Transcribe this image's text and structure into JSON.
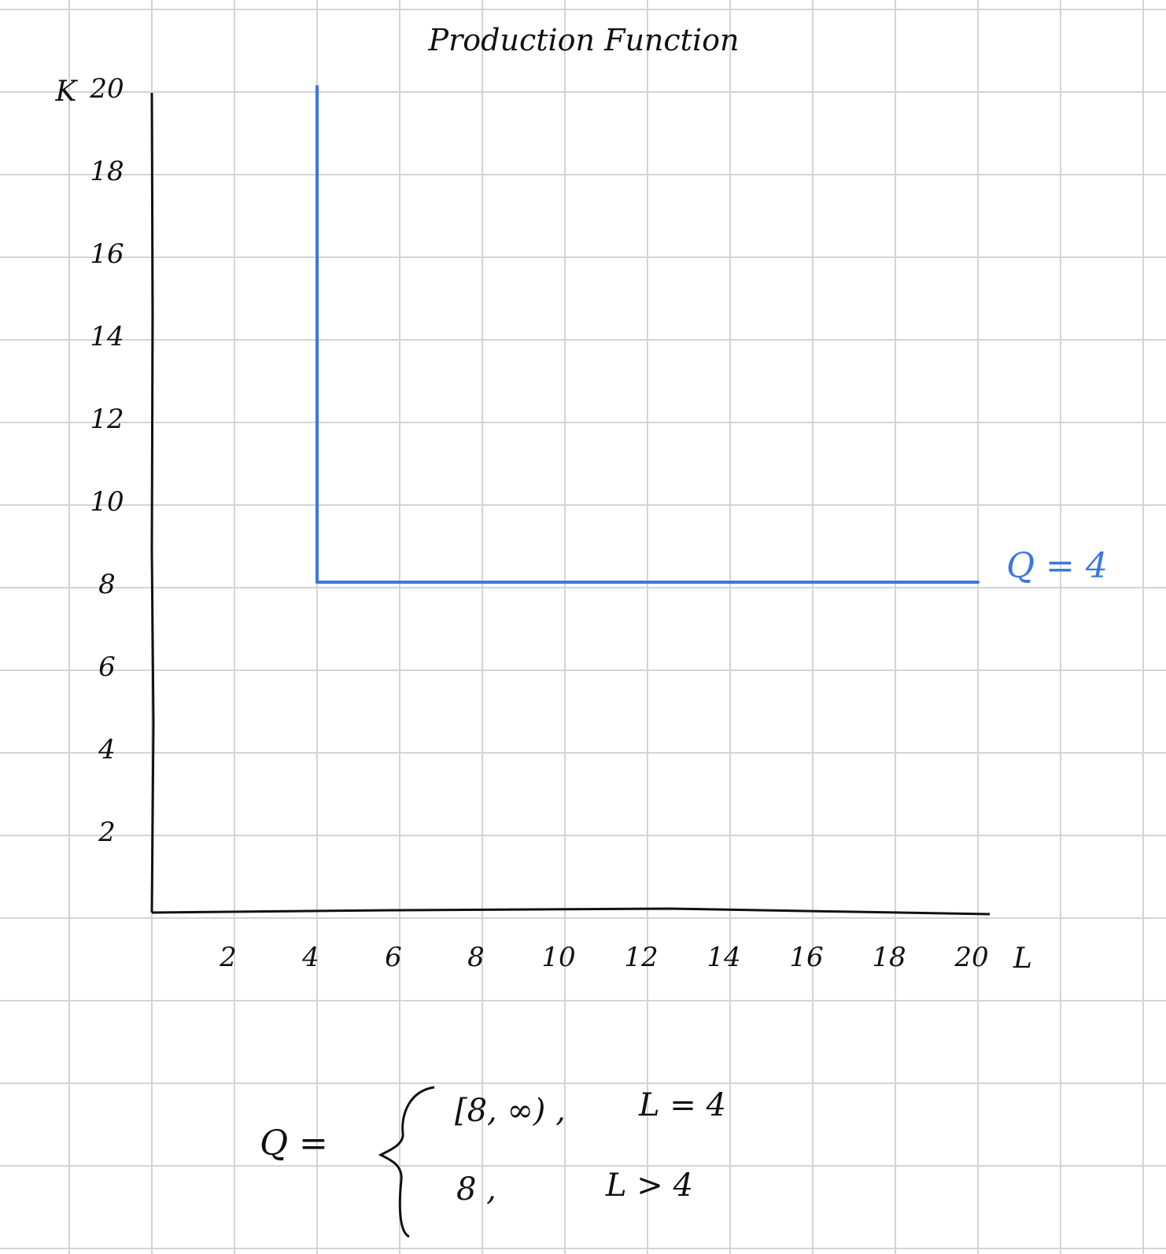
{
  "colors": {
    "grid": "#d4d4d4",
    "axis": "#111111",
    "curve": "#3a78e0",
    "label_blue": "#3a78e0"
  },
  "chart_data": {
    "type": "line",
    "title": "Production Function",
    "xlabel": "L",
    "ylabel": "K",
    "xlim": [
      0,
      20
    ],
    "ylim": [
      0,
      20
    ],
    "x_ticks": [
      "2",
      "4",
      "6",
      "8",
      "10",
      "12",
      "14",
      "16",
      "18",
      "20"
    ],
    "y_ticks": [
      "2",
      "4",
      "6",
      "8",
      "10",
      "12",
      "14",
      "16",
      "18",
      "20"
    ],
    "grid": true,
    "series": [
      {
        "name": "Q = 4",
        "x": [
          4,
          4,
          20
        ],
        "y": [
          20,
          8,
          8
        ]
      }
    ],
    "formula": {
      "lhs": "Q =",
      "cases": [
        {
          "value": "[8, ∞) ,",
          "condition": "L = 4"
        },
        {
          "value": "8 ,",
          "condition": "L > 4"
        }
      ]
    }
  }
}
